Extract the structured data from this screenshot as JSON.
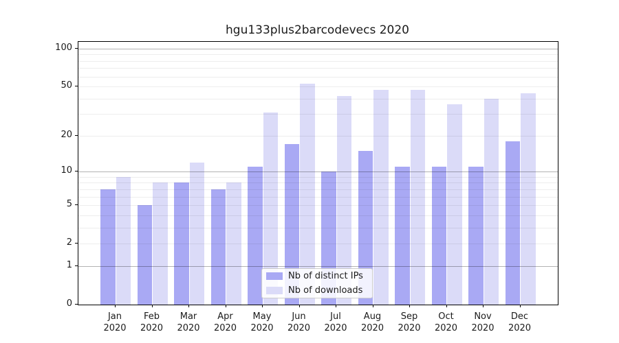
{
  "chart_data": {
    "type": "bar",
    "title": "hgu133plus2barcodevecs 2020",
    "x_months": [
      "Jan",
      "Feb",
      "Mar",
      "Apr",
      "May",
      "Jun",
      "Jul",
      "Aug",
      "Sep",
      "Oct",
      "Nov",
      "Dec"
    ],
    "x_year": "2020",
    "series": [
      {
        "name": "Nb of distinct IPs",
        "color": "#a9a9f4",
        "values": [
          7,
          5,
          8,
          7,
          11,
          17,
          10,
          15,
          11,
          11,
          11,
          18
        ]
      },
      {
        "name": "Nb of downloads",
        "color": "#dbdbf8",
        "values": [
          9,
          8,
          12,
          8,
          31,
          53,
          42,
          47,
          47,
          36,
          40,
          44
        ]
      }
    ],
    "yscale": "log1p",
    "ylim": [
      0,
      113
    ],
    "yticks": [
      "0",
      "1",
      "2",
      "5",
      "10",
      "20",
      "50",
      "100"
    ],
    "ytick_values": [
      0,
      1,
      2,
      5,
      10,
      20,
      50,
      100
    ],
    "gridlines": {
      "major": [
        1,
        10,
        100
      ],
      "minor": [
        2,
        3,
        4,
        5,
        6,
        7,
        8,
        9,
        20,
        30,
        40,
        50,
        60,
        70,
        80,
        90
      ]
    },
    "legend": {
      "position": "lower-center"
    },
    "colors": {
      "bar_distinct_ips": "#a9a9f4",
      "bar_downloads": "#dbdbf8",
      "major_grid": "#b3b3b3",
      "minor_grid": "#ededed",
      "spine": "#000000",
      "text": "#1a1a1a"
    }
  }
}
